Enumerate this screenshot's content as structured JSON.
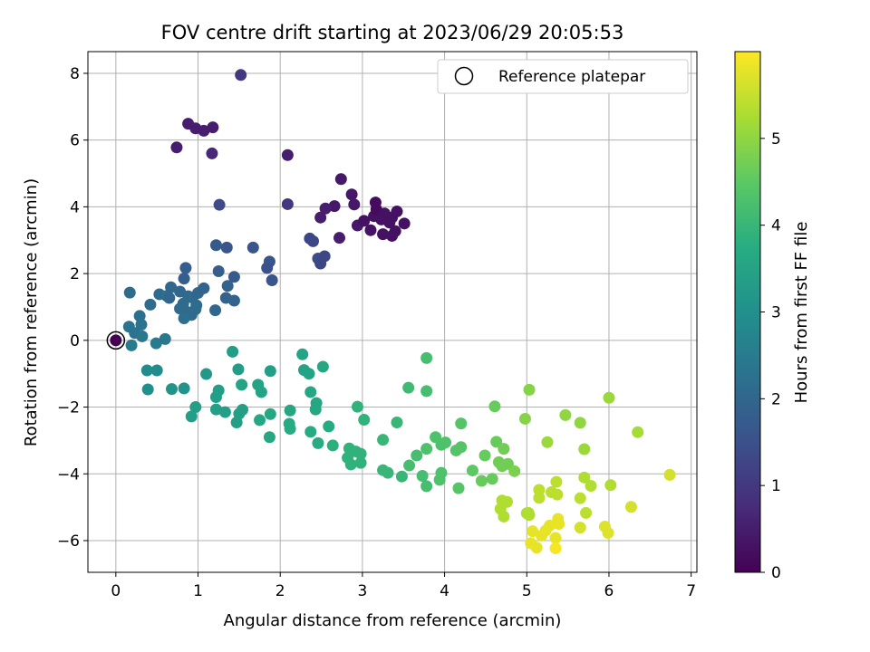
{
  "chart_data": {
    "type": "scatter",
    "title": "FOV centre drift starting at 2023/06/29 20:05:53",
    "xlabel": "Angular distance from reference (arcmin)",
    "ylabel": "Rotation from reference (arcmin)",
    "xlim": [
      -0.34,
      7.07
    ],
    "ylim": [
      -6.95,
      8.65
    ],
    "xticks": [
      0,
      1,
      2,
      3,
      4,
      5,
      6,
      7
    ],
    "yticks": [
      -6,
      -4,
      -2,
      0,
      2,
      4,
      6,
      8
    ],
    "xtick_labels": [
      "0",
      "1",
      "2",
      "3",
      "4",
      "5",
      "6",
      "7"
    ],
    "ytick_labels": [
      "−6",
      "−4",
      "−2",
      "0",
      "2",
      "4",
      "6",
      "8"
    ],
    "grid": true,
    "colormap": "viridis",
    "colorbar": {
      "label": "Hours from first FF file",
      "range": [
        0,
        6.0
      ],
      "ticks": [
        0,
        1,
        2,
        3,
        4,
        5
      ],
      "tick_labels": [
        "0",
        "1",
        "2",
        "3",
        "4",
        "5"
      ]
    },
    "legend": {
      "position": "top-right",
      "entries": [
        {
          "label": "Reference platepar",
          "marker": "open-circle"
        }
      ]
    },
    "reference_point": {
      "x": 0,
      "y": 0,
      "hours": 0
    },
    "points": [
      {
        "x": 1.52,
        "y": 7.95,
        "h": 1.0
      },
      {
        "x": 0.88,
        "y": 6.49,
        "h": 0.5
      },
      {
        "x": 0.97,
        "y": 6.35,
        "h": 0.5
      },
      {
        "x": 1.07,
        "y": 6.28,
        "h": 0.5
      },
      {
        "x": 1.18,
        "y": 6.38,
        "h": 0.5
      },
      {
        "x": 0.74,
        "y": 5.78,
        "h": 0.5
      },
      {
        "x": 1.17,
        "y": 5.6,
        "h": 0.7
      },
      {
        "x": 2.09,
        "y": 5.55,
        "h": 0.5
      },
      {
        "x": 1.26,
        "y": 4.06,
        "h": 1.4
      },
      {
        "x": 2.09,
        "y": 4.08,
        "h": 1.0
      },
      {
        "x": 2.74,
        "y": 4.83,
        "h": 0.4
      },
      {
        "x": 2.87,
        "y": 4.37,
        "h": 0.4
      },
      {
        "x": 2.9,
        "y": 4.07,
        "h": 0.4
      },
      {
        "x": 2.66,
        "y": 4.02,
        "h": 0.4
      },
      {
        "x": 2.55,
        "y": 3.95,
        "h": 0.5
      },
      {
        "x": 2.49,
        "y": 3.68,
        "h": 0.5
      },
      {
        "x": 2.72,
        "y": 3.07,
        "h": 0.5
      },
      {
        "x": 2.94,
        "y": 3.44,
        "h": 0.4
      },
      {
        "x": 3.02,
        "y": 3.58,
        "h": 0.3
      },
      {
        "x": 3.14,
        "y": 3.72,
        "h": 0.3
      },
      {
        "x": 3.23,
        "y": 3.62,
        "h": 0.3
      },
      {
        "x": 3.16,
        "y": 4.13,
        "h": 0.2
      },
      {
        "x": 3.17,
        "y": 3.92,
        "h": 0.2
      },
      {
        "x": 3.27,
        "y": 3.8,
        "h": 0.3
      },
      {
        "x": 3.33,
        "y": 3.53,
        "h": 0.3
      },
      {
        "x": 3.36,
        "y": 3.68,
        "h": 0.3
      },
      {
        "x": 3.42,
        "y": 3.86,
        "h": 0.3
      },
      {
        "x": 3.51,
        "y": 3.5,
        "h": 0.3
      },
      {
        "x": 3.25,
        "y": 3.18,
        "h": 0.3
      },
      {
        "x": 3.36,
        "y": 3.13,
        "h": 0.3
      },
      {
        "x": 3.4,
        "y": 3.27,
        "h": 0.3
      },
      {
        "x": 3.1,
        "y": 3.3,
        "h": 0.3
      },
      {
        "x": 2.36,
        "y": 3.05,
        "h": 1.3
      },
      {
        "x": 2.4,
        "y": 2.97,
        "h": 1.3
      },
      {
        "x": 2.46,
        "y": 2.45,
        "h": 1.4
      },
      {
        "x": 2.49,
        "y": 2.3,
        "h": 1.3
      },
      {
        "x": 2.54,
        "y": 2.52,
        "h": 1.3
      },
      {
        "x": 1.67,
        "y": 2.78,
        "h": 1.6
      },
      {
        "x": 1.35,
        "y": 2.78,
        "h": 1.6
      },
      {
        "x": 1.22,
        "y": 2.85,
        "h": 1.7
      },
      {
        "x": 1.87,
        "y": 2.36,
        "h": 1.6
      },
      {
        "x": 1.84,
        "y": 2.17,
        "h": 1.5
      },
      {
        "x": 1.9,
        "y": 1.8,
        "h": 1.6
      },
      {
        "x": 1.25,
        "y": 2.07,
        "h": 1.8
      },
      {
        "x": 1.44,
        "y": 1.9,
        "h": 1.7
      },
      {
        "x": 1.36,
        "y": 1.63,
        "h": 1.9
      },
      {
        "x": 1.34,
        "y": 1.27,
        "h": 1.9
      },
      {
        "x": 1.44,
        "y": 1.19,
        "h": 1.9
      },
      {
        "x": 1.21,
        "y": 0.9,
        "h": 2.0
      },
      {
        "x": 0.85,
        "y": 2.17,
        "h": 1.8
      },
      {
        "x": 0.83,
        "y": 1.85,
        "h": 1.8
      },
      {
        "x": 0.17,
        "y": 1.43,
        "h": 2.1
      },
      {
        "x": 0.53,
        "y": 1.38,
        "h": 2.1
      },
      {
        "x": 0.62,
        "y": 1.33,
        "h": 2.2
      },
      {
        "x": 0.67,
        "y": 1.59,
        "h": 2.0
      },
      {
        "x": 0.42,
        "y": 1.07,
        "h": 2.1
      },
      {
        "x": 0.65,
        "y": 1.27,
        "h": 2.0
      },
      {
        "x": 0.78,
        "y": 1.46,
        "h": 2.0
      },
      {
        "x": 0.82,
        "y": 1.1,
        "h": 2.1
      },
      {
        "x": 0.88,
        "y": 1.32,
        "h": 2.1
      },
      {
        "x": 0.93,
        "y": 1.28,
        "h": 2.1
      },
      {
        "x": 1.0,
        "y": 1.42,
        "h": 2.0
      },
      {
        "x": 1.07,
        "y": 1.56,
        "h": 1.9
      },
      {
        "x": 0.98,
        "y": 1.05,
        "h": 2.1
      },
      {
        "x": 0.87,
        "y": 0.85,
        "h": 2.1
      },
      {
        "x": 0.92,
        "y": 0.76,
        "h": 2.1
      },
      {
        "x": 0.83,
        "y": 0.66,
        "h": 2.2
      },
      {
        "x": 0.97,
        "y": 0.93,
        "h": 2.1
      },
      {
        "x": 0.78,
        "y": 0.95,
        "h": 2.1
      },
      {
        "x": 0.29,
        "y": 0.73,
        "h": 2.2
      },
      {
        "x": 0.16,
        "y": 0.41,
        "h": 2.3
      },
      {
        "x": 0.31,
        "y": 0.47,
        "h": 2.3
      },
      {
        "x": 0.23,
        "y": 0.22,
        "h": 2.3
      },
      {
        "x": 0.32,
        "y": 0.12,
        "h": 2.4
      },
      {
        "x": 0.19,
        "y": -0.15,
        "h": 2.5
      },
      {
        "x": 0.49,
        "y": -0.09,
        "h": 2.5
      },
      {
        "x": 0.6,
        "y": 0.04,
        "h": 2.4
      },
      {
        "x": 0.38,
        "y": -0.9,
        "h": 2.9
      },
      {
        "x": 0.5,
        "y": -0.9,
        "h": 2.9
      },
      {
        "x": 0.39,
        "y": -1.47,
        "h": 3.0
      },
      {
        "x": 0.68,
        "y": -1.46,
        "h": 3.1
      },
      {
        "x": 0.83,
        "y": -1.44,
        "h": 3.1
      },
      {
        "x": 1.1,
        "y": -1.01,
        "h": 3.2
      },
      {
        "x": 1.42,
        "y": -0.34,
        "h": 3.3
      },
      {
        "x": 1.49,
        "y": -0.87,
        "h": 3.3
      },
      {
        "x": 1.88,
        "y": -0.92,
        "h": 3.4
      },
      {
        "x": 1.25,
        "y": -1.5,
        "h": 3.4
      },
      {
        "x": 1.22,
        "y": -1.7,
        "h": 3.4
      },
      {
        "x": 0.97,
        "y": -2.0,
        "h": 3.4
      },
      {
        "x": 0.92,
        "y": -2.28,
        "h": 3.4
      },
      {
        "x": 1.22,
        "y": -2.07,
        "h": 3.4
      },
      {
        "x": 1.33,
        "y": -2.15,
        "h": 3.4
      },
      {
        "x": 1.5,
        "y": -2.2,
        "h": 3.4
      },
      {
        "x": 1.54,
        "y": -2.08,
        "h": 3.4
      },
      {
        "x": 1.47,
        "y": -2.46,
        "h": 3.4
      },
      {
        "x": 1.53,
        "y": -1.33,
        "h": 3.5
      },
      {
        "x": 1.73,
        "y": -1.33,
        "h": 3.5
      },
      {
        "x": 1.77,
        "y": -1.55,
        "h": 3.5
      },
      {
        "x": 1.75,
        "y": -2.39,
        "h": 3.6
      },
      {
        "x": 1.88,
        "y": -2.21,
        "h": 3.6
      },
      {
        "x": 1.87,
        "y": -2.9,
        "h": 3.6
      },
      {
        "x": 2.27,
        "y": -0.42,
        "h": 3.5
      },
      {
        "x": 2.29,
        "y": -0.89,
        "h": 3.5
      },
      {
        "x": 2.35,
        "y": -1.0,
        "h": 3.5
      },
      {
        "x": 2.52,
        "y": -0.79,
        "h": 3.6
      },
      {
        "x": 2.37,
        "y": -1.55,
        "h": 3.6
      },
      {
        "x": 2.44,
        "y": -1.88,
        "h": 3.6
      },
      {
        "x": 2.43,
        "y": -2.07,
        "h": 3.6
      },
      {
        "x": 2.12,
        "y": -2.1,
        "h": 3.6
      },
      {
        "x": 2.11,
        "y": -2.5,
        "h": 3.7
      },
      {
        "x": 2.12,
        "y": -2.65,
        "h": 3.7
      },
      {
        "x": 2.37,
        "y": -2.74,
        "h": 3.7
      },
      {
        "x": 2.59,
        "y": -2.58,
        "h": 3.7
      },
      {
        "x": 2.46,
        "y": -3.08,
        "h": 3.7
      },
      {
        "x": 2.64,
        "y": -3.15,
        "h": 3.8
      },
      {
        "x": 2.94,
        "y": -1.99,
        "h": 3.9
      },
      {
        "x": 3.02,
        "y": -2.38,
        "h": 3.9
      },
      {
        "x": 2.84,
        "y": -3.24,
        "h": 3.9
      },
      {
        "x": 2.92,
        "y": -3.33,
        "h": 3.9
      },
      {
        "x": 2.98,
        "y": -3.4,
        "h": 3.9
      },
      {
        "x": 2.82,
        "y": -3.52,
        "h": 3.9
      },
      {
        "x": 2.86,
        "y": -3.72,
        "h": 3.9
      },
      {
        "x": 2.98,
        "y": -3.67,
        "h": 3.9
      },
      {
        "x": 3.25,
        "y": -2.98,
        "h": 4.0
      },
      {
        "x": 3.25,
        "y": -3.89,
        "h": 4.0
      },
      {
        "x": 3.31,
        "y": -3.97,
        "h": 4.0
      },
      {
        "x": 3.42,
        "y": -2.46,
        "h": 4.0
      },
      {
        "x": 3.48,
        "y": -4.08,
        "h": 4.0
      },
      {
        "x": 3.56,
        "y": -1.42,
        "h": 4.1
      },
      {
        "x": 3.78,
        "y": -0.53,
        "h": 4.2
      },
      {
        "x": 3.78,
        "y": -1.52,
        "h": 4.2
      },
      {
        "x": 3.66,
        "y": -3.45,
        "h": 4.2
      },
      {
        "x": 3.57,
        "y": -3.75,
        "h": 4.2
      },
      {
        "x": 3.73,
        "y": -4.06,
        "h": 4.2
      },
      {
        "x": 3.78,
        "y": -4.37,
        "h": 4.2
      },
      {
        "x": 3.78,
        "y": -3.25,
        "h": 4.3
      },
      {
        "x": 3.89,
        "y": -2.9,
        "h": 4.3
      },
      {
        "x": 3.96,
        "y": -3.13,
        "h": 4.3
      },
      {
        "x": 4.01,
        "y": -3.06,
        "h": 4.3
      },
      {
        "x": 3.96,
        "y": -3.97,
        "h": 4.3
      },
      {
        "x": 3.94,
        "y": -4.18,
        "h": 4.3
      },
      {
        "x": 4.14,
        "y": -3.3,
        "h": 4.4
      },
      {
        "x": 4.2,
        "y": -3.2,
        "h": 4.4
      },
      {
        "x": 4.2,
        "y": -2.49,
        "h": 4.4
      },
      {
        "x": 4.17,
        "y": -4.43,
        "h": 4.4
      },
      {
        "x": 4.34,
        "y": -3.9,
        "h": 4.5
      },
      {
        "x": 4.61,
        "y": -1.98,
        "h": 4.6
      },
      {
        "x": 4.63,
        "y": -3.04,
        "h": 4.6
      },
      {
        "x": 4.49,
        "y": -3.45,
        "h": 4.6
      },
      {
        "x": 4.45,
        "y": -4.21,
        "h": 4.6
      },
      {
        "x": 4.58,
        "y": -4.15,
        "h": 4.6
      },
      {
        "x": 4.66,
        "y": -3.65,
        "h": 4.7
      },
      {
        "x": 4.7,
        "y": -3.77,
        "h": 4.7
      },
      {
        "x": 4.77,
        "y": -3.7,
        "h": 4.7
      },
      {
        "x": 4.72,
        "y": -3.25,
        "h": 4.7
      },
      {
        "x": 4.85,
        "y": -3.92,
        "h": 4.8
      },
      {
        "x": 4.98,
        "y": -2.35,
        "h": 4.9
      },
      {
        "x": 5.03,
        "y": -1.48,
        "h": 4.9
      },
      {
        "x": 4.7,
        "y": -4.8,
        "h": 5.3
      },
      {
        "x": 4.76,
        "y": -4.84,
        "h": 5.3
      },
      {
        "x": 4.68,
        "y": -5.05,
        "h": 5.3
      },
      {
        "x": 4.72,
        "y": -5.28,
        "h": 5.3
      },
      {
        "x": 5.02,
        "y": -5.17,
        "h": 5.3
      },
      {
        "x": 5.03,
        "y": -5.23,
        "h": 5.3
      },
      {
        "x": 5.47,
        "y": -2.24,
        "h": 5.0
      },
      {
        "x": 5.25,
        "y": -3.05,
        "h": 5.1
      },
      {
        "x": 5.65,
        "y": -2.47,
        "h": 5.0
      },
      {
        "x": 5.7,
        "y": -3.26,
        "h": 5.1
      },
      {
        "x": 5.0,
        "y": -5.18,
        "h": 5.3
      },
      {
        "x": 5.15,
        "y": -4.48,
        "h": 5.4
      },
      {
        "x": 5.15,
        "y": -4.72,
        "h": 5.4
      },
      {
        "x": 5.3,
        "y": -4.55,
        "h": 5.4
      },
      {
        "x": 5.37,
        "y": -4.62,
        "h": 5.4
      },
      {
        "x": 5.36,
        "y": -4.24,
        "h": 5.4
      },
      {
        "x": 5.7,
        "y": -4.11,
        "h": 5.3
      },
      {
        "x": 5.78,
        "y": -4.36,
        "h": 5.3
      },
      {
        "x": 5.65,
        "y": -4.73,
        "h": 5.4
      },
      {
        "x": 5.72,
        "y": -5.17,
        "h": 5.4
      },
      {
        "x": 5.65,
        "y": -5.61,
        "h": 5.6
      },
      {
        "x": 6.0,
        "y": -1.72,
        "h": 5.1
      },
      {
        "x": 6.35,
        "y": -2.75,
        "h": 5.2
      },
      {
        "x": 6.02,
        "y": -4.34,
        "h": 5.3
      },
      {
        "x": 6.27,
        "y": -4.99,
        "h": 5.6
      },
      {
        "x": 6.74,
        "y": -4.03,
        "h": 5.6
      },
      {
        "x": 5.95,
        "y": -5.58,
        "h": 5.7
      },
      {
        "x": 5.99,
        "y": -5.77,
        "h": 5.7
      },
      {
        "x": 5.07,
        "y": -5.72,
        "h": 5.8
      },
      {
        "x": 5.05,
        "y": -6.08,
        "h": 5.8
      },
      {
        "x": 5.12,
        "y": -6.21,
        "h": 5.8
      },
      {
        "x": 5.18,
        "y": -5.85,
        "h": 5.8
      },
      {
        "x": 5.23,
        "y": -5.7,
        "h": 5.8
      },
      {
        "x": 5.28,
        "y": -5.55,
        "h": 5.8
      },
      {
        "x": 5.35,
        "y": -5.92,
        "h": 5.8
      },
      {
        "x": 5.39,
        "y": -5.5,
        "h": 5.8
      },
      {
        "x": 5.38,
        "y": -5.35,
        "h": 5.8
      },
      {
        "x": 5.35,
        "y": -6.23,
        "h": 5.95
      }
    ]
  }
}
